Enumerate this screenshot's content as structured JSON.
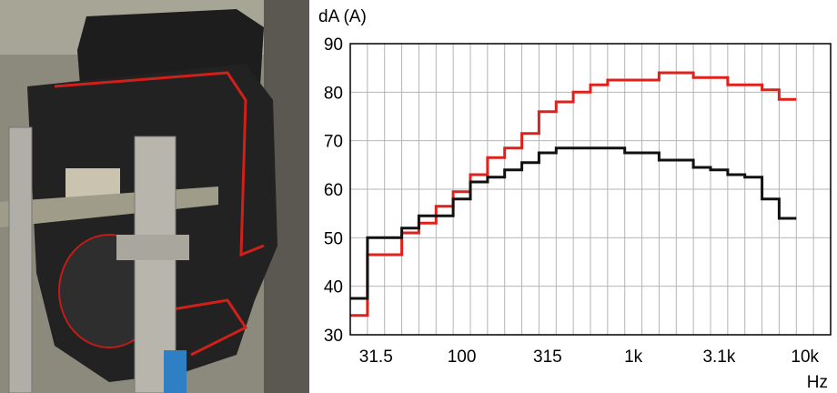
{
  "photo": {
    "description": "",
    "colors": {
      "bg": "#8a8a7a",
      "enclosure": "#1c1c1c",
      "seal": "#d0201a",
      "metal": "#b9b7ad"
    }
  },
  "chart_data": {
    "type": "line",
    "ylabel": "dA (A)",
    "xlabel": "Hz",
    "ylim": [
      30,
      90
    ],
    "yticks": [
      30,
      40,
      50,
      60,
      70,
      80,
      90
    ],
    "x_tick_labels": [
      "31.5",
      "100",
      "315",
      "1k",
      "3.1k",
      "10k"
    ],
    "x_bands": [
      "25",
      "31.5",
      "40",
      "50",
      "63",
      "80",
      "100",
      "125",
      "160",
      "200",
      "250",
      "315",
      "400",
      "500",
      "630",
      "800",
      "1k",
      "1.25k",
      "1.6k",
      "2k",
      "2.5k",
      "3.15k",
      "4k",
      "5k",
      "6.3k",
      "8k",
      "10k",
      "12.5k"
    ],
    "grid": true,
    "series": [
      {
        "color": "#e0201b",
        "values": [
          34,
          46.5,
          46.5,
          51,
          53,
          56.5,
          59.5,
          63,
          66.5,
          68.5,
          71.5,
          76,
          78,
          80,
          81.5,
          82.5,
          82.5,
          82.5,
          84,
          84,
          83,
          83,
          81.5,
          81.5,
          80.5,
          78.5
        ]
      },
      {
        "color": "#111111",
        "values": [
          37.5,
          50,
          50,
          52,
          54.5,
          54.5,
          58,
          61.5,
          62.5,
          64,
          65.5,
          67.5,
          68.5,
          68.5,
          68.5,
          68.5,
          67.5,
          67.5,
          66,
          66,
          64.5,
          64,
          63,
          62.5,
          58,
          54
        ]
      }
    ]
  }
}
